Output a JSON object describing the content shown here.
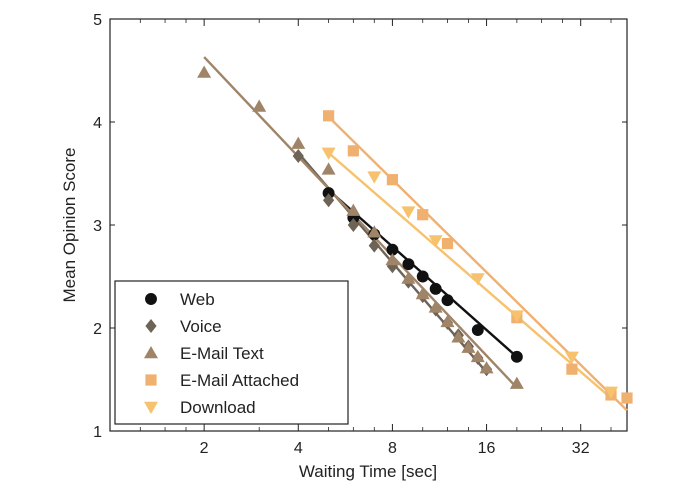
{
  "chart_data": {
    "type": "scatter",
    "title": "",
    "xlabel": "Waiting Time [sec]",
    "ylabel": "Mean Opinion Score",
    "x_scale": "log2",
    "xlim": [
      1,
      45
    ],
    "ylim": [
      1,
      5
    ],
    "x_ticks": [
      2,
      4,
      8,
      16,
      32
    ],
    "x_tick_labels": [
      "2",
      "4",
      "8",
      "16",
      "32"
    ],
    "y_ticks": [
      1,
      2,
      3,
      4,
      5
    ],
    "y_tick_labels": [
      "1",
      "2",
      "3",
      "4",
      "5"
    ],
    "grid": false,
    "legend_position": "bottom-left",
    "series": [
      {
        "name": "Web",
        "marker": "circle",
        "color": "#111111",
        "points": [
          [
            5,
            3.31
          ],
          [
            6,
            3.07
          ],
          [
            7,
            2.91
          ],
          [
            8,
            2.76
          ],
          [
            9,
            2.62
          ],
          [
            10,
            2.5
          ],
          [
            11,
            2.38
          ],
          [
            12,
            2.27
          ],
          [
            15,
            1.98
          ],
          [
            20,
            1.72
          ]
        ],
        "fit": [
          [
            5,
            3.34
          ],
          [
            20,
            1.72
          ]
        ]
      },
      {
        "name": "Voice",
        "marker": "diamond",
        "color": "#6e6357",
        "points": [
          [
            4,
            3.67
          ],
          [
            5,
            3.24
          ],
          [
            6,
            3.0
          ],
          [
            7,
            2.8
          ],
          [
            8,
            2.6
          ],
          [
            9,
            2.45
          ],
          [
            10,
            2.31
          ],
          [
            11,
            2.18
          ],
          [
            12,
            2.05
          ],
          [
            13,
            1.93
          ],
          [
            14,
            1.82
          ],
          [
            15,
            1.71
          ],
          [
            16,
            1.6
          ]
        ],
        "fit": [
          [
            4,
            3.7
          ],
          [
            16,
            1.57
          ]
        ]
      },
      {
        "name": "E-Mail Text",
        "marker": "triangle-up",
        "color": "#a08468",
        "points": [
          [
            2,
            4.48
          ],
          [
            3,
            4.15
          ],
          [
            4,
            3.79
          ],
          [
            5,
            3.54
          ],
          [
            6,
            3.14
          ],
          [
            7,
            2.93
          ],
          [
            8,
            2.66
          ],
          [
            9,
            2.48
          ],
          [
            10,
            2.33
          ],
          [
            11,
            2.2
          ],
          [
            12,
            2.06
          ],
          [
            13,
            1.91
          ],
          [
            14,
            1.81
          ],
          [
            15,
            1.72
          ],
          [
            16,
            1.61
          ],
          [
            20,
            1.46
          ]
        ],
        "fit": [
          [
            2,
            4.63
          ],
          [
            20,
            1.42
          ]
        ]
      },
      {
        "name": "E-Mail Attached",
        "marker": "square",
        "color": "#f0b070",
        "points": [
          [
            5,
            4.06
          ],
          [
            6,
            3.72
          ],
          [
            8,
            3.44
          ],
          [
            10,
            3.1
          ],
          [
            12,
            2.82
          ],
          [
            20,
            2.1
          ],
          [
            30,
            1.6
          ],
          [
            40,
            1.35
          ],
          [
            45,
            1.32
          ]
        ],
        "fit": [
          [
            5,
            4.05
          ],
          [
            45,
            1.2
          ]
        ]
      },
      {
        "name": "Download",
        "marker": "triangle-down",
        "color": "#f6c26e",
        "points": [
          [
            5,
            3.7
          ],
          [
            7,
            3.47
          ],
          [
            9,
            3.13
          ],
          [
            11,
            2.85
          ],
          [
            15,
            2.48
          ],
          [
            20,
            2.12
          ],
          [
            30,
            1.72
          ],
          [
            40,
            1.38
          ]
        ],
        "fit": [
          [
            5,
            3.7
          ],
          [
            40,
            1.32
          ]
        ]
      }
    ]
  }
}
